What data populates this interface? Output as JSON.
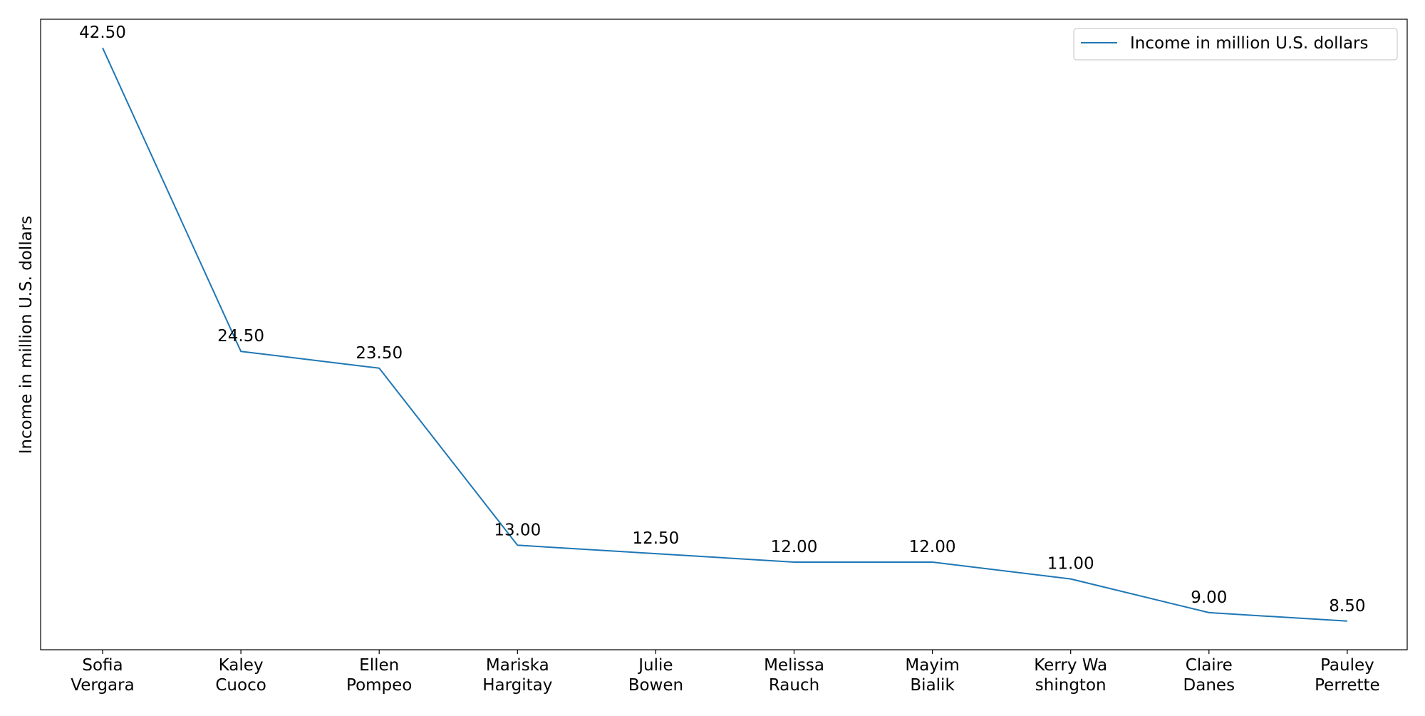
{
  "chart_data": {
    "type": "line",
    "categories": [
      [
        "Sofia",
        "Vergara"
      ],
      [
        "Kaley",
        "Cuoco"
      ],
      [
        "Ellen",
        "Pompeo"
      ],
      [
        "Mariska",
        "Hargitay"
      ],
      [
        "Julie",
        "Bowen"
      ],
      [
        "Melissa",
        "Rauch"
      ],
      [
        "Mayim",
        "Bialik"
      ],
      [
        "Kerry Wa",
        "shington"
      ],
      [
        "Claire",
        "Danes"
      ],
      [
        "Pauley",
        "Perrette"
      ]
    ],
    "series": [
      {
        "name": "Income in million U.S. dollars",
        "values": [
          42.5,
          24.5,
          23.5,
          13.0,
          12.5,
          12.0,
          12.0,
          11.0,
          9.0,
          8.5
        ],
        "labels": [
          "42.50",
          "24.50",
          "23.50",
          "13.00",
          "12.50",
          "12.00",
          "12.00",
          "11.00",
          "9.00",
          "8.50"
        ],
        "color": "#1f77b4"
      }
    ],
    "ylabel": "Income in million U.S. dollars",
    "xlabel": "",
    "ylim": [
      6.8,
      44.2
    ],
    "grid": false,
    "legend": "upper right",
    "y_ticks_shown": false
  }
}
